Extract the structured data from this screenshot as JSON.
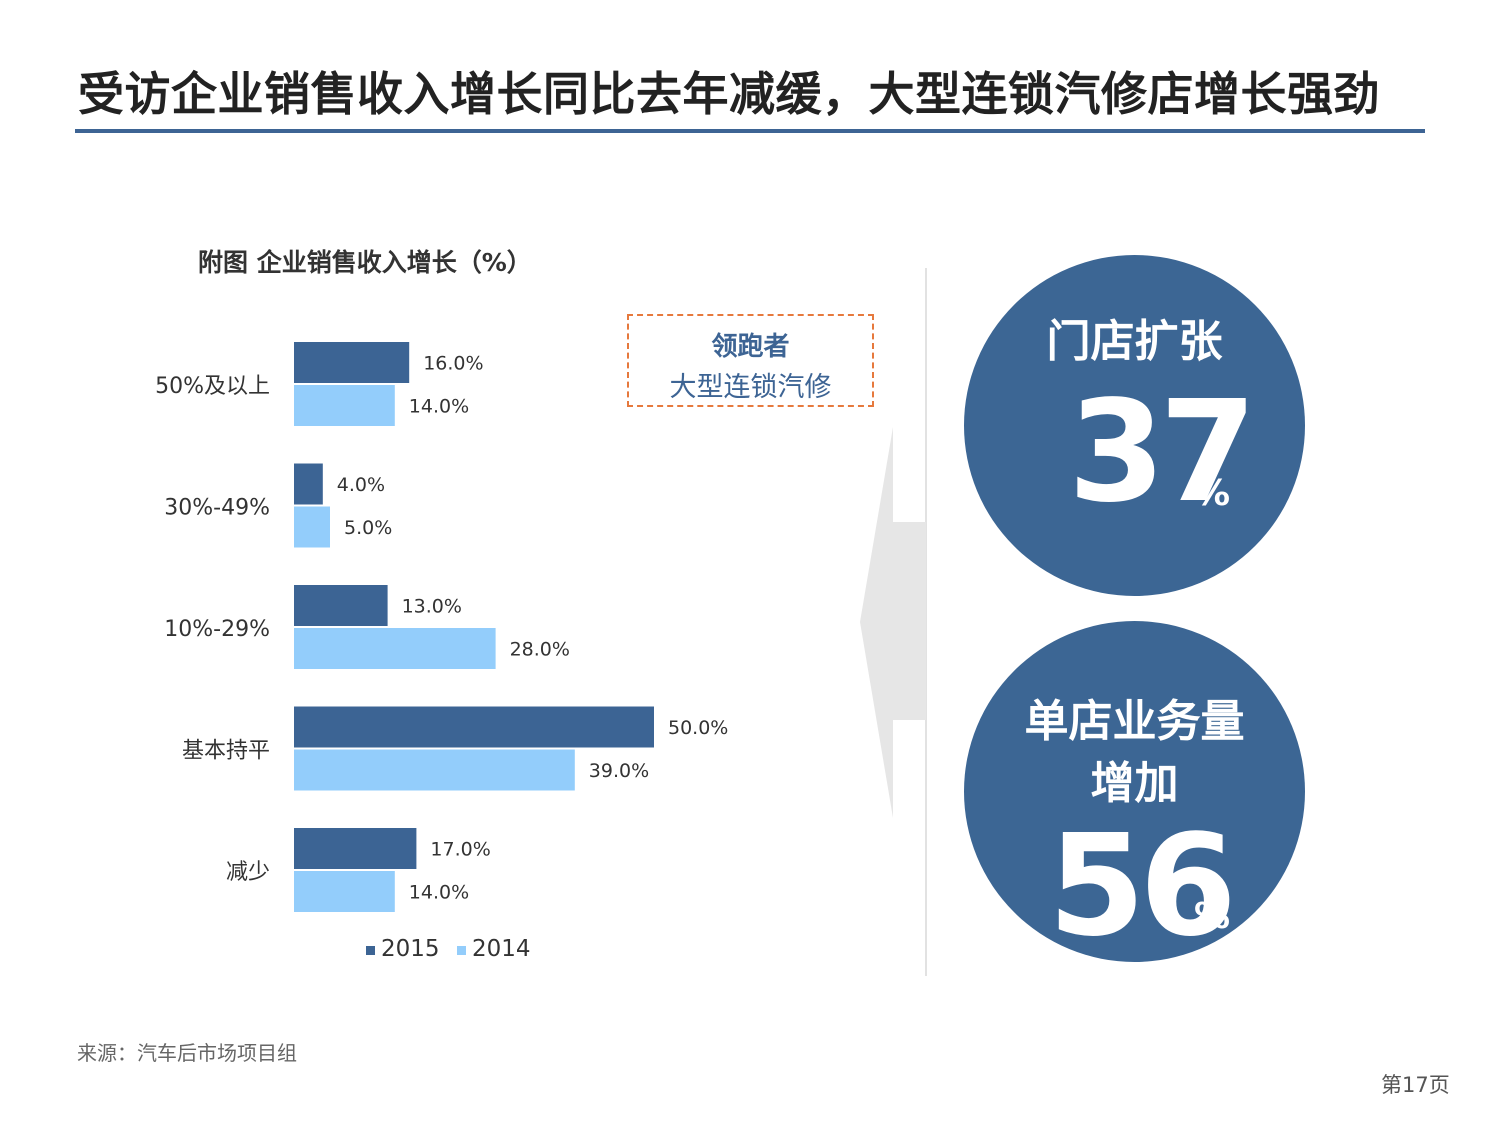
{
  "slide": {
    "title": "受访企业销售收入增长同比去年减缓，大型连锁汽修店增长强劲",
    "source": "来源：汽车后市场项目组",
    "page_number": "第17页"
  },
  "callout": {
    "line1": "领跑者",
    "line2": "大型连锁汽修"
  },
  "highlights": [
    {
      "label": "门店扩张",
      "value": "37",
      "unit": "%"
    },
    {
      "label": "单店业务量增加",
      "label_line1": "单店业务量",
      "label_line2": "增加",
      "value": "56",
      "unit": "%"
    }
  ],
  "colors": {
    "accent": "#3d6494",
    "series_2015": "#3c6494",
    "series_2014": "#93cdfb",
    "callout_border": "#e6793d"
  },
  "chart_data": {
    "type": "bar",
    "orientation": "horizontal",
    "title": "附图  企业销售收入增长（%）",
    "categories": [
      "50%及以上",
      "30%-49%",
      "10%-29%",
      "基本持平",
      "减少"
    ],
    "series": [
      {
        "name": "2015",
        "values": [
          16.0,
          4.0,
          13.0,
          50.0,
          17.0
        ],
        "labels": [
          "16.0%",
          "4.0%",
          "13.0%",
          "50.0%",
          "17.0%"
        ]
      },
      {
        "name": "2014",
        "values": [
          14.0,
          5.0,
          28.0,
          39.0,
          14.0
        ],
        "labels": [
          "14.0%",
          "5.0%",
          "28.0%",
          "39.0%",
          "14.0%"
        ]
      }
    ],
    "xlim": [
      0,
      50
    ],
    "grid": false,
    "legend": "bottom"
  }
}
